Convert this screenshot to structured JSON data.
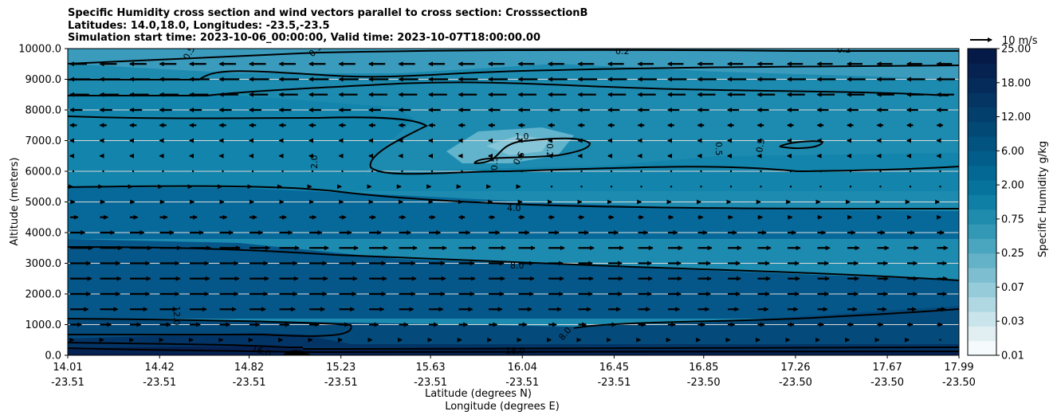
{
  "title_lines": [
    "Specific Humidity cross section and wind vectors parallel to cross section: CrosssectionB",
    "Latitudes: 14.0,18.0, Longitudes: -23.5,-23.5",
    "Simulation start time: 2023-10-06_00:00:00, Valid time: 2023-10-07T18:00:00.00"
  ],
  "quiver_key": "10 m/s",
  "chart_data": {
    "type": "heatmap",
    "ylabel": "Altitude (meters)",
    "xlabel_lines": [
      "Latitude (degrees N)",
      "Longitude (degrees E)"
    ],
    "ylim": [
      0,
      10000
    ],
    "y_ticks": [
      "0.0",
      "1000.0",
      "2000.0",
      "3000.0",
      "4000.0",
      "5000.0",
      "6000.0",
      "7000.0",
      "8000.0",
      "9000.0",
      "10000.0"
    ],
    "x_ticks": [
      {
        "lat": "14.01",
        "lon": "-23.51"
      },
      {
        "lat": "14.42",
        "lon": "-23.51"
      },
      {
        "lat": "14.82",
        "lon": "-23.51"
      },
      {
        "lat": "15.23",
        "lon": "-23.51"
      },
      {
        "lat": "15.63",
        "lon": "-23.51"
      },
      {
        "lat": "16.04",
        "lon": "-23.51"
      },
      {
        "lat": "16.45",
        "lon": "-23.51"
      },
      {
        "lat": "16.85",
        "lon": "-23.50"
      },
      {
        "lat": "17.26",
        "lon": "-23.50"
      },
      {
        "lat": "17.67",
        "lon": "-23.50"
      },
      {
        "lat": "17.99",
        "lon": "-23.50"
      }
    ],
    "colorbar": {
      "label": "Specific Humidity g/kg",
      "tick_labels": [
        "0.01",
        "0.03",
        "0.07",
        "0.25",
        "0.75",
        "2.00",
        "6.00",
        "12.00",
        "18.00",
        "25.00"
      ],
      "colors": [
        "#f5fafc",
        "#e1eff3",
        "#c9e4ea",
        "#b0d8e2",
        "#96cbd9",
        "#7dbfd0",
        "#63b2c7",
        "#4aa5be",
        "#3298b5",
        "#1f8cad",
        "#0f7fa5",
        "#06739d",
        "#036894",
        "#025d8a",
        "#025380",
        "#024976",
        "#033f6c",
        "#043563",
        "#052b5a",
        "#062251",
        "#061a48"
      ]
    },
    "contour_labels": [
      "0.2",
      "0.5",
      "1.0",
      "2.0",
      "4.0",
      "8.0",
      "12.0",
      "16.0",
      "18.0"
    ],
    "grid": "horizontal",
    "legend": "quiver key top-right"
  }
}
